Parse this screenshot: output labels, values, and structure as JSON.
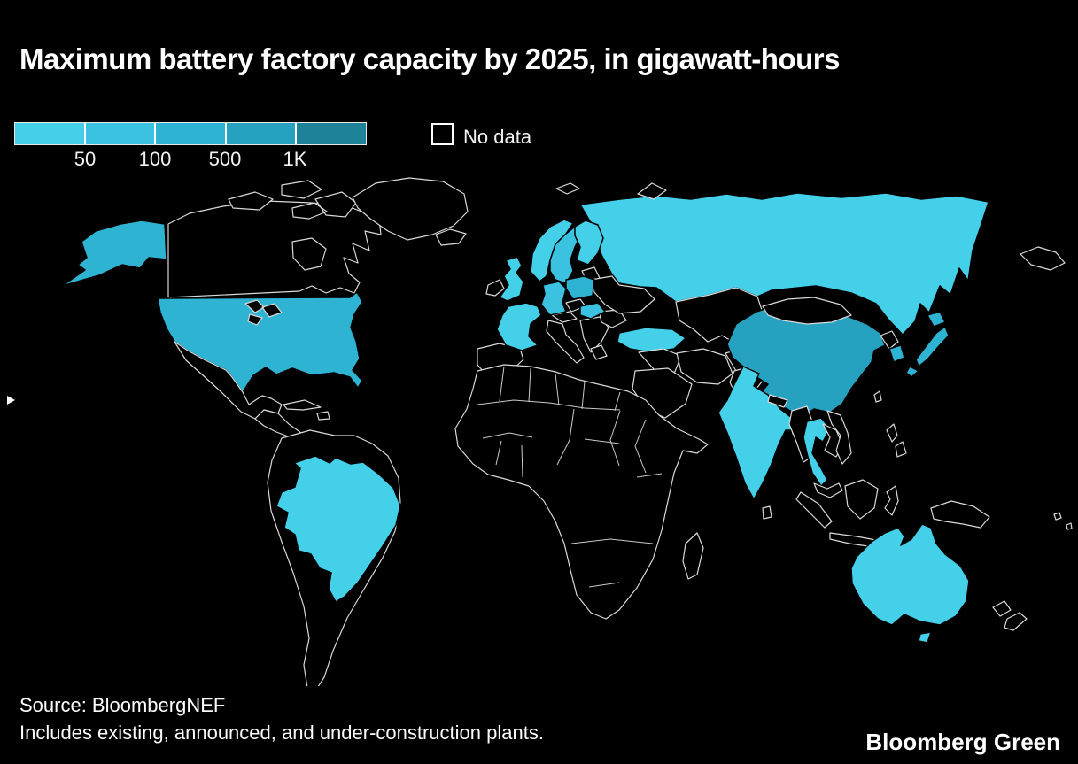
{
  "title": "Maximum battery factory capacity by 2025, in gigawatt-hours",
  "legend": {
    "tick_labels": [
      "50",
      "100",
      "500",
      "1K"
    ],
    "no_data_label": "No data",
    "categories": [
      {
        "id": "lt50",
        "label": "<50",
        "color": "#45d0ea"
      },
      {
        "id": "50-100",
        "label": "50–100",
        "color": "#3ac2e0"
      },
      {
        "id": "100-500",
        "label": "100–500",
        "color": "#2fb3d3"
      },
      {
        "id": "500-1k",
        "label": "500–1K",
        "color": "#26a1c0"
      },
      {
        "id": "gt1k",
        "label": ">1K",
        "color": "#1e8398"
      }
    ],
    "no_data_color": "#000000",
    "country_outline_color": "#d9d9d9"
  },
  "map": {
    "countries": {
      "united-states": "100-500",
      "japan": "100-500",
      "south-korea": "100-500",
      "poland": "100-500",
      "china": "500-1k",
      "germany": "50-100",
      "sweden": "50-100",
      "hungary": "50-100",
      "brazil": "lt50",
      "russia": "lt50",
      "india": "lt50",
      "australia": "lt50",
      "united-kingdom": "lt50",
      "france": "lt50",
      "norway": "lt50",
      "finland": "lt50",
      "turkey": "lt50",
      "thailand": "lt50"
    }
  },
  "source_line1": "Source: BloombergNEF",
  "source_line2": "Includes existing, announced, and under-construction plants.",
  "brand": "Bloomberg Green",
  "chart_data": {
    "type": "heatmap",
    "subtype": "choropleth-world-map",
    "title": "Maximum battery factory capacity by 2025, in gigawatt-hours",
    "unit": "gigawatt-hours",
    "bins": [
      "<50",
      "50–100",
      "100–500",
      "500–1K",
      ">1K"
    ],
    "bin_colors": [
      "#45d0ea",
      "#3ac2e0",
      "#2fb3d3",
      "#26a1c0",
      "#1e8398"
    ],
    "tick_labels": [
      "50",
      "100",
      "500",
      "1K"
    ],
    "no_data_label": "No data",
    "legend_position": "top-left",
    "data": [
      {
        "country": "United States",
        "bin": "100–500"
      },
      {
        "country": "China",
        "bin": "500–1K"
      },
      {
        "country": "Japan",
        "bin": "100–500"
      },
      {
        "country": "South Korea",
        "bin": "100–500"
      },
      {
        "country": "Poland",
        "bin": "100–500"
      },
      {
        "country": "Germany",
        "bin": "50–100"
      },
      {
        "country": "Sweden",
        "bin": "50–100"
      },
      {
        "country": "Hungary",
        "bin": "50–100"
      },
      {
        "country": "Brazil",
        "bin": "<50"
      },
      {
        "country": "Russia",
        "bin": "<50"
      },
      {
        "country": "India",
        "bin": "<50"
      },
      {
        "country": "Australia",
        "bin": "<50"
      },
      {
        "country": "United Kingdom",
        "bin": "<50"
      },
      {
        "country": "France",
        "bin": "<50"
      },
      {
        "country": "Norway",
        "bin": "<50"
      },
      {
        "country": "Finland",
        "bin": "<50"
      },
      {
        "country": "Turkey",
        "bin": "<50"
      },
      {
        "country": "Thailand",
        "bin": "<50"
      }
    ],
    "source": "Source: BloombergNEF",
    "note": "Includes existing, announced, and under-construction plants."
  }
}
